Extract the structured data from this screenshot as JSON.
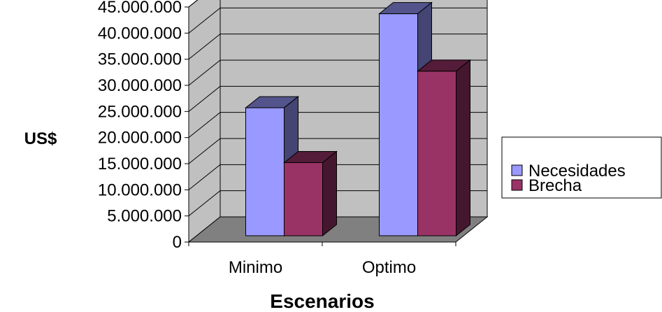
{
  "chart_data": {
    "type": "bar",
    "variant": "3d-clustered-column",
    "title": "",
    "xlabel": "Escenarios",
    "ylabel": "US$",
    "categories": [
      "Minimo",
      "Optimo"
    ],
    "series": [
      {
        "name": "Necesidades",
        "values": [
          24500000,
          42500000
        ],
        "color": "#9999ff"
      },
      {
        "name": "Brecha",
        "values": [
          14000000,
          31500000
        ],
        "color": "#993366"
      }
    ],
    "ylim": [
      0,
      45000000
    ],
    "yticks": [
      0,
      5000000,
      10000000,
      15000000,
      20000000,
      25000000,
      30000000,
      35000000,
      40000000,
      45000000
    ],
    "ytick_labels": [
      "0",
      "5.000.000",
      "10.000.000",
      "15.000.000",
      "20.000.000",
      "25.000.000",
      "30.000.000",
      "35.000.000",
      "40.000.000",
      "45.000.000"
    ],
    "grid": true,
    "legend": "right",
    "wall_color": "#c0c0c0",
    "floor_color": "#808080"
  }
}
